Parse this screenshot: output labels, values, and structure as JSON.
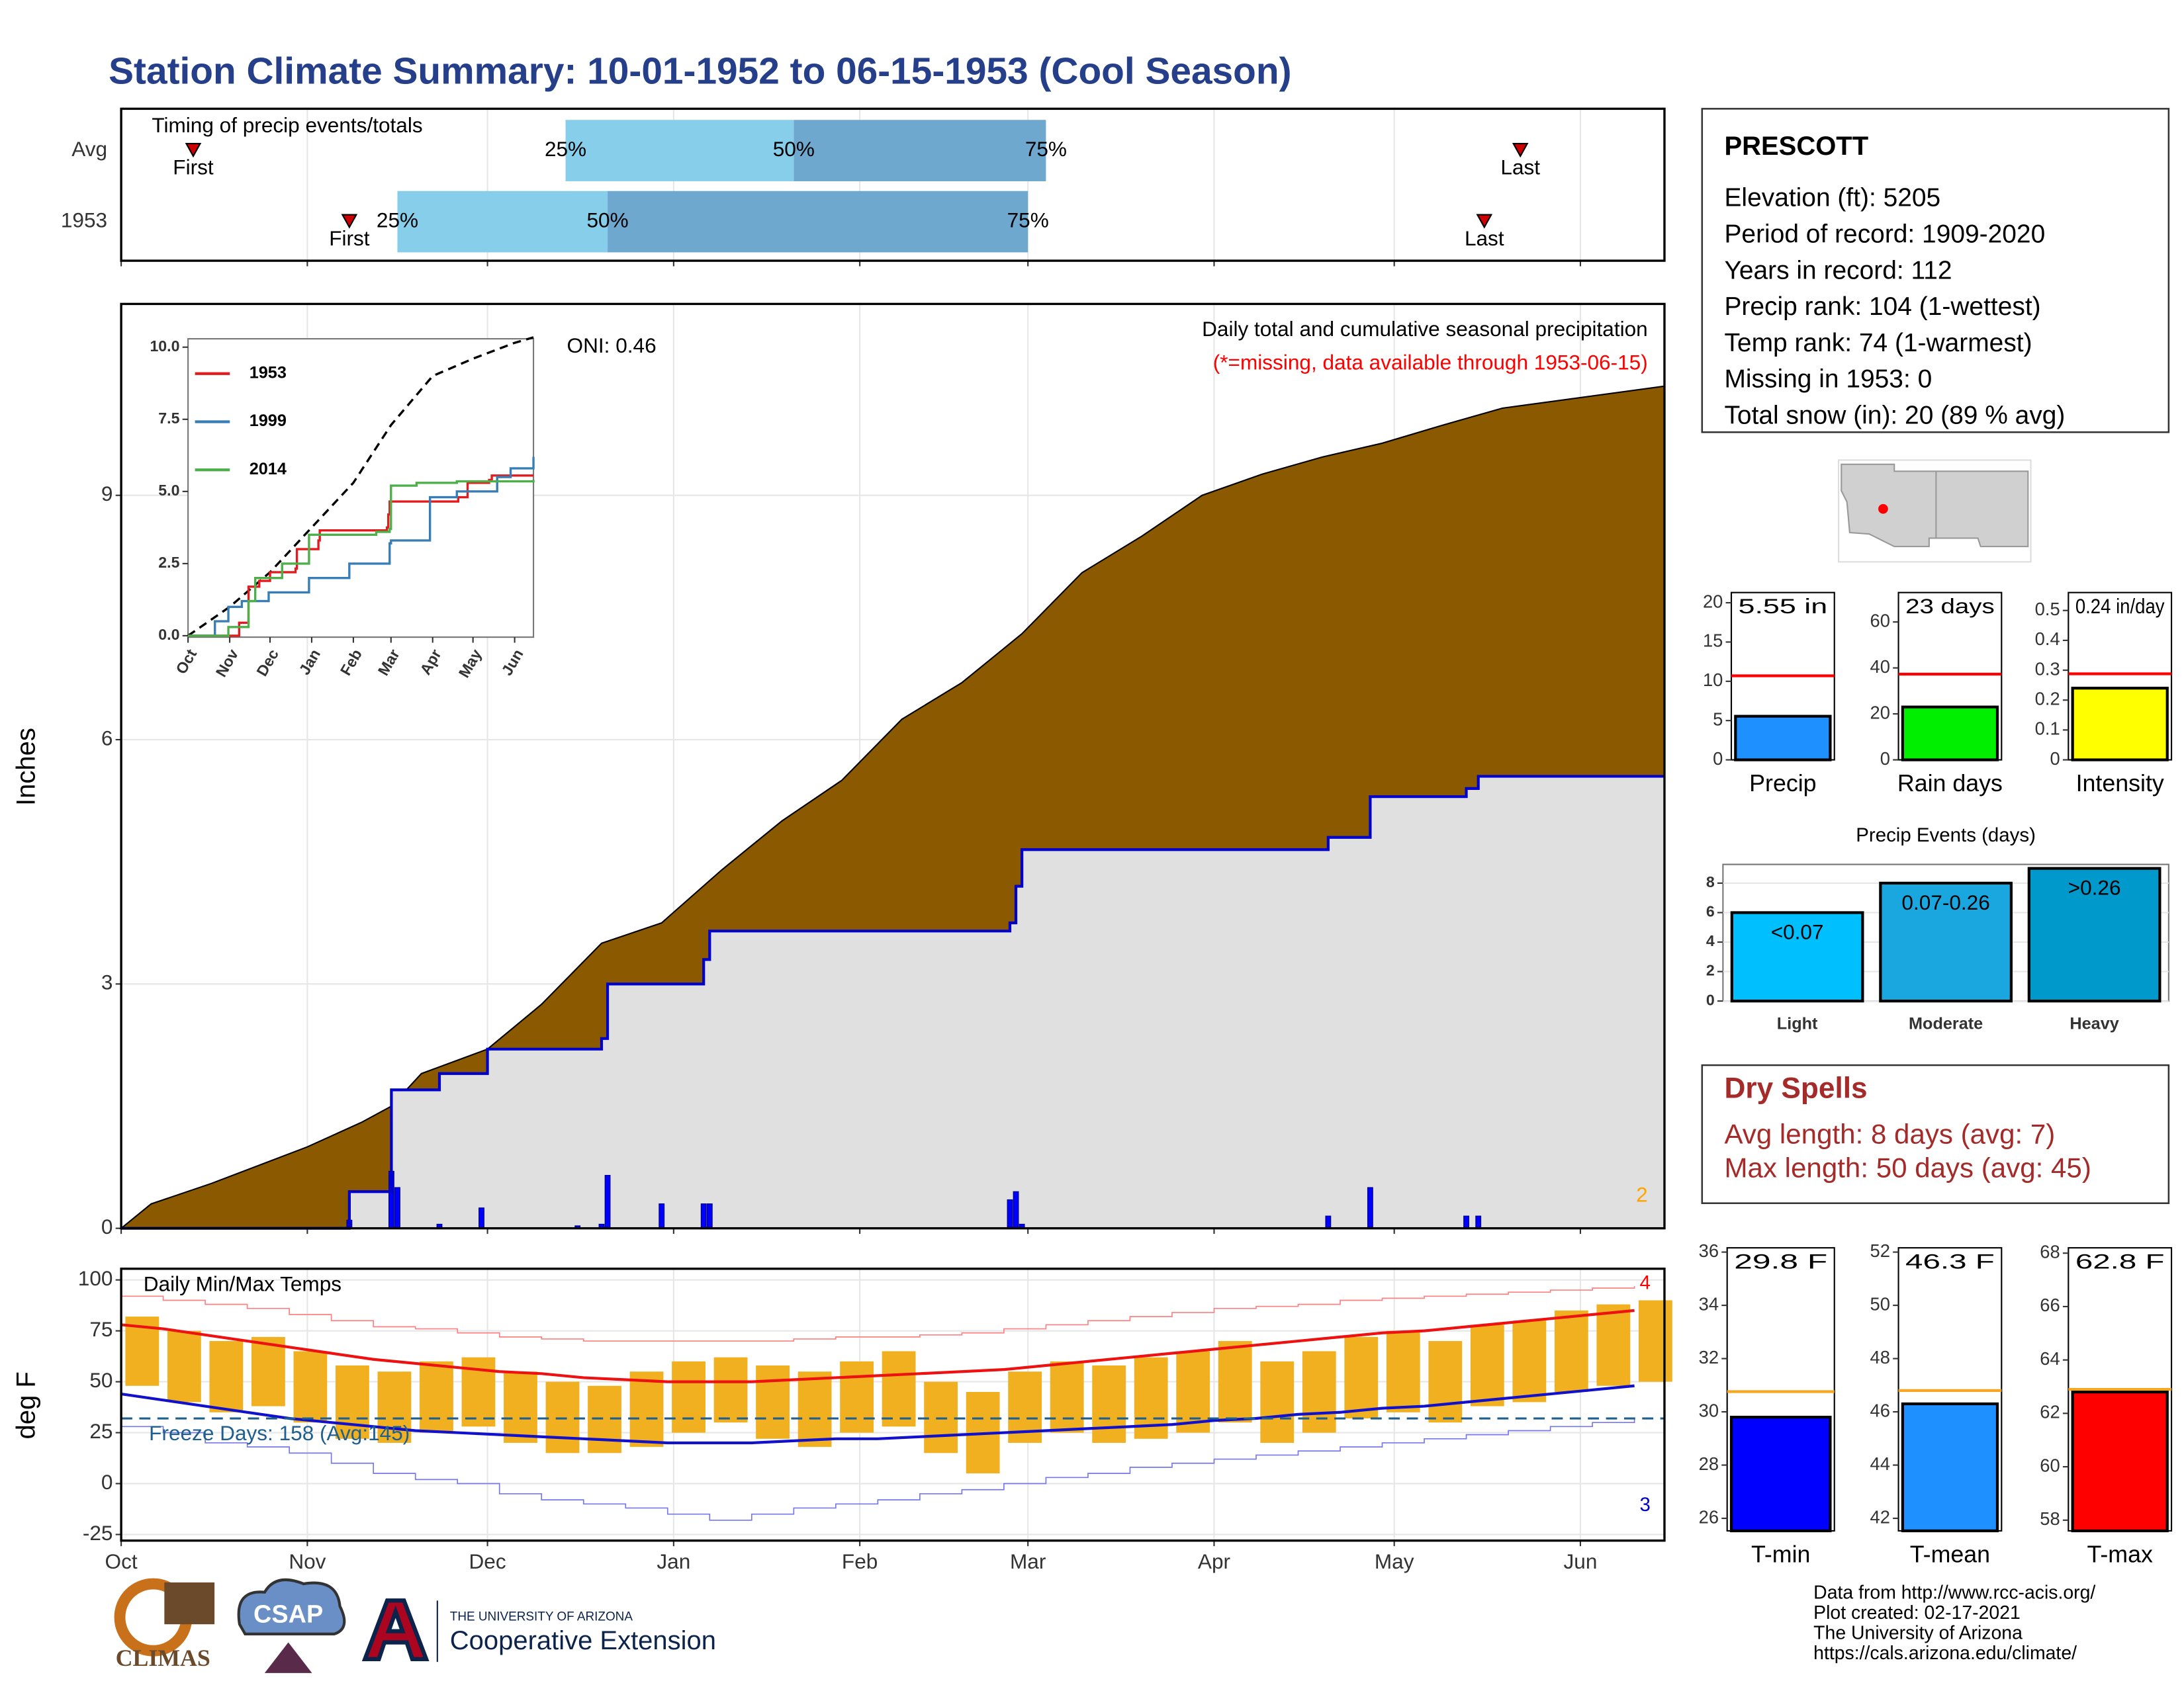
{
  "title": "Station Climate Summary: 10-01-1952 to 06-15-1953 (Cool Season)",
  "station": {
    "name": "PRESCOTT",
    "lines": [
      "Elevation (ft): 5205",
      "Period of record: 1909-2020",
      "Years in record: 112",
      "Precip rank: 104 (1-wettest)",
      "Temp rank: 74 (1-warmest)",
      "Missing in 1953: 0",
      "Total snow (in): 20 (89 % avg)"
    ]
  },
  "dry_spells": {
    "title": "Dry Spells",
    "lines": [
      "Avg length: 8 days (avg: 7)",
      "Max length: 50 days (avg: 45)"
    ]
  },
  "credits": {
    "lines": [
      "Data from http://www.rcc-acis.org/",
      "Plot created: 02-17-2021",
      "The University of Arizona",
      "https://cals.arizona.edu/climate/"
    ],
    "logos": [
      "CLIMAS",
      "CSAP",
      "THE UNIVERSITY OF ARIZONA",
      "Cooperative Extension"
    ]
  },
  "chart_data": [
    {
      "type": "timeline",
      "title": "Timing of precip events/totals",
      "xlim": [
        0,
        257
      ],
      "xticks": [
        0,
        31,
        61,
        92,
        123,
        151,
        182,
        212,
        243
      ],
      "rows": [
        {
          "name": "Avg",
          "labels": [
            "First",
            "25%",
            "50%",
            "75%",
            "Last"
          ],
          "values": [
            12,
            74,
            112,
            154,
            233
          ]
        },
        {
          "name": "1953",
          "labels": [
            "First",
            "25%",
            "50%",
            "75%",
            "Last"
          ],
          "values": [
            38,
            46,
            81,
            151,
            227
          ]
        }
      ],
      "colors": [
        "#cc0000",
        "#87ceeb",
        "#6fa8cf"
      ]
    },
    {
      "type": "area",
      "ylabel": "Inches",
      "xlim": [
        0,
        257
      ],
      "xticks": [
        0,
        31,
        61,
        92,
        123,
        151,
        182,
        212,
        243
      ],
      "ylim": [
        0,
        11.35
      ],
      "yticks": [
        0,
        3,
        6,
        9
      ],
      "grid": true,
      "annotations": [
        "ONI: 0.46",
        "Daily total and cumulative seasonal precipitation",
        "(*=missing, data available through 1953-06-15)",
        "2"
      ],
      "annotation_colors": [
        "#000000",
        "#000000",
        "#ff0000",
        "#ffa500"
      ],
      "series": [
        {
          "color": "#8b5a00",
          "x": [
            0,
            5,
            15,
            31,
            40,
            45,
            50,
            61,
            70,
            80,
            90,
            100,
            110,
            120,
            130,
            140,
            150,
            160,
            170,
            180,
            190,
            200,
            210,
            220,
            230,
            240,
            257
          ],
          "values": [
            0,
            0.3,
            0.55,
            1.0,
            1.3,
            1.5,
            1.9,
            2.2,
            2.75,
            3.5,
            3.75,
            4.4,
            5.0,
            5.5,
            6.25,
            6.7,
            7.3,
            8.05,
            8.5,
            9.0,
            9.26,
            9.47,
            9.64,
            9.86,
            10.07,
            10.17,
            10.34
          ]
        },
        {
          "color": "#0000cc",
          "fill": "#e0e0e0",
          "step": true,
          "x": [
            0,
            38,
            45,
            53,
            61,
            80,
            81,
            97,
            98,
            148,
            149,
            150,
            201,
            208,
            224,
            226,
            257
          ],
          "values": [
            0,
            0.45,
            1.7,
            1.9,
            2.2,
            2.33,
            3.0,
            3.3,
            3.65,
            3.75,
            4.2,
            4.65,
            4.8,
            5.3,
            5.4,
            5.55,
            5.55
          ]
        }
      ],
      "daily": {
        "color": "#0000ff",
        "x": [
          38,
          45,
          46,
          53,
          60,
          76,
          80,
          81,
          90,
          97,
          98,
          148,
          149,
          150,
          201,
          208,
          224,
          226
        ],
        "values": [
          0.1,
          0.7,
          0.5,
          0.05,
          0.25,
          0.03,
          0.05,
          0.65,
          0.3,
          0.3,
          0.3,
          0.35,
          0.45,
          0.05,
          0.15,
          0.5,
          0.15,
          0.15
        ]
      }
    },
    {
      "type": "line",
      "xlim": [
        0,
        257
      ],
      "xticks": [
        {
          "value": 0,
          "label": "Oct"
        },
        {
          "value": 31,
          "label": "Nov"
        },
        {
          "value": 61,
          "label": "Dec"
        },
        {
          "value": 92,
          "label": "Jan"
        },
        {
          "value": 123,
          "label": "Feb"
        },
        {
          "value": 151,
          "label": "Mar"
        },
        {
          "value": 182,
          "label": "Apr"
        },
        {
          "value": 212,
          "label": "May"
        },
        {
          "value": 243,
          "label": "Jun"
        }
      ],
      "ylim": [
        -0.05,
        10.29
      ],
      "yticks": [
        {
          "value": 0,
          "label": "0.0"
        },
        2.5,
        {
          "value": 5,
          "label": "5.0"
        },
        7.5,
        {
          "value": 10,
          "label": "10.0"
        }
      ],
      "series": [
        {
          "color": "#000000",
          "dash": true,
          "x": [
            0,
            31,
            61,
            92,
            123,
            151,
            182,
            212,
            243,
            257
          ],
          "values": [
            0,
            1.0,
            2.2,
            3.75,
            5.3,
            7.3,
            9.0,
            9.6,
            10.15,
            10.34
          ]
        },
        {
          "name": "1953",
          "color": "#e41a1c",
          "step": true,
          "x": [
            0,
            38,
            45,
            53,
            61,
            80,
            81,
            97,
            98,
            148,
            149,
            150,
            201,
            208,
            224,
            226,
            257
          ],
          "values": [
            0,
            0.45,
            1.7,
            1.9,
            2.2,
            2.33,
            3.0,
            3.3,
            3.65,
            3.75,
            4.2,
            4.65,
            4.8,
            5.3,
            5.4,
            5.55,
            5.55
          ]
        },
        {
          "name": "1999",
          "color": "#377eb8",
          "step": true,
          "x": [
            0,
            20,
            30,
            40,
            60,
            90,
            120,
            150,
            151,
            180,
            200,
            230,
            240,
            257
          ],
          "values": [
            0,
            0.5,
            1.0,
            1.2,
            1.5,
            2.0,
            2.5,
            3.2,
            3.3,
            4.8,
            5.0,
            5.5,
            5.8,
            6.2
          ]
        },
        {
          "name": "2014",
          "color": "#4daf4a",
          "step": true,
          "x": [
            0,
            30,
            45,
            50,
            70,
            90,
            140,
            150,
            151,
            170,
            200,
            257
          ],
          "values": [
            0,
            0.3,
            1.2,
            2.0,
            2.5,
            3.5,
            3.6,
            3.7,
            5.2,
            5.3,
            5.35,
            5.4
          ]
        }
      ]
    },
    {
      "type": "temperature",
      "title": "Daily Min/Max Temps",
      "ylabel": "deg F",
      "xlim": [
        0,
        257
      ],
      "xticks": [
        {
          "value": 0,
          "label": "Oct"
        },
        {
          "value": 31,
          "label": "Nov"
        },
        {
          "value": 61,
          "label": "Dec"
        },
        {
          "value": 92,
          "label": "Jan"
        },
        {
          "value": 123,
          "label": "Feb"
        },
        {
          "value": 151,
          "label": "Mar"
        },
        {
          "value": 182,
          "label": "Apr"
        },
        {
          "value": 212,
          "label": "May"
        },
        {
          "value": 243,
          "label": "Jun"
        }
      ],
      "ylim": [
        -28,
        105.5
      ],
      "yticks": [
        100,
        75,
        50,
        25,
        0,
        -25
      ],
      "grid": true,
      "x": [
        0,
        7,
        14,
        21,
        28,
        35,
        42,
        49,
        56,
        63,
        70,
        77,
        84,
        91,
        98,
        105,
        112,
        119,
        126,
        133,
        140,
        147,
        154,
        161,
        168,
        175,
        182,
        189,
        196,
        203,
        210,
        217,
        224,
        231,
        238,
        245,
        252
      ],
      "record_max": {
        "color": "#ff8080",
        "values": [
          92,
          90,
          88,
          86,
          83,
          80,
          77,
          76,
          74,
          72,
          71,
          70,
          70,
          70,
          70,
          70,
          71,
          72,
          72,
          73,
          74,
          76,
          78,
          80,
          82,
          84,
          86,
          87,
          88,
          90,
          91,
          92,
          93,
          94,
          95,
          96,
          97
        ]
      },
      "avg_max": {
        "color": "#ee1111",
        "values": [
          78,
          76,
          73,
          70,
          67,
          64,
          61,
          59,
          57,
          55,
          54,
          52,
          51,
          50,
          50,
          50,
          51,
          52,
          53,
          54,
          55,
          56,
          58,
          60,
          62,
          64,
          66,
          68,
          70,
          72,
          74,
          75,
          77,
          79,
          81,
          83,
          85
        ]
      },
      "avg_min": {
        "color": "#1111cc",
        "values": [
          44,
          41,
          38,
          35,
          32,
          30,
          28,
          26,
          25,
          24,
          23,
          22,
          21,
          20,
          20,
          20,
          21,
          22,
          22,
          23,
          24,
          25,
          26,
          27,
          28,
          29,
          31,
          32,
          34,
          35,
          37,
          38,
          40,
          42,
          44,
          46,
          48
        ]
      },
      "record_min": {
        "color": "#7777ee",
        "values": [
          28,
          25,
          20,
          18,
          15,
          10,
          5,
          2,
          0,
          -5,
          -8,
          -10,
          -12,
          -15,
          -18,
          -15,
          -12,
          -10,
          -8,
          -5,
          -3,
          0,
          3,
          5,
          8,
          10,
          12,
          14,
          16,
          18,
          20,
          22,
          24,
          26,
          28,
          30,
          32
        ]
      },
      "daily_max": {
        "values": [
          82,
          75,
          70,
          72,
          65,
          58,
          55,
          60,
          62,
          55,
          50,
          48,
          55,
          60,
          62,
          58,
          55,
          60,
          65,
          50,
          45,
          55,
          60,
          58,
          62,
          65,
          70,
          60,
          65,
          72,
          75,
          70,
          78,
          80,
          85,
          88,
          90
        ]
      },
      "daily_min": {
        "values": [
          48,
          40,
          35,
          38,
          30,
          22,
          20,
          25,
          28,
          20,
          15,
          15,
          18,
          25,
          30,
          22,
          18,
          25,
          28,
          15,
          5,
          20,
          25,
          20,
          22,
          25,
          30,
          20,
          25,
          32,
          35,
          30,
          38,
          40,
          45,
          48,
          50
        ]
      },
      "bar_color": "#f0b020",
      "freeze": {
        "value": 32,
        "color": "#1f5f8f",
        "label": "Freeze Days: 158 (Avg:145)"
      },
      "annotations": [
        "4",
        "3"
      ],
      "annotation_colors": [
        "#ff0000",
        "#0000cc"
      ]
    },
    {
      "type": "bar",
      "categories": [
        "Precip"
      ],
      "values": [
        5.55
      ],
      "value_labels": [
        "5.55 in"
      ],
      "avg": 10.7,
      "color": "#1e90ff",
      "avg_color": "#ff0000",
      "ylim": [
        0,
        21.3
      ],
      "yticks": [
        0,
        5,
        10,
        15,
        20
      ]
    },
    {
      "type": "bar",
      "categories": [
        "Rain days"
      ],
      "values": [
        23
      ],
      "value_labels": [
        "23 days"
      ],
      "avg": 37.3,
      "color": "#00ee00",
      "avg_color": "#ff0000",
      "ylim": [
        0,
        72.8
      ],
      "yticks": [
        0,
        20,
        40,
        60
      ]
    },
    {
      "type": "bar",
      "categories": [
        "Intensity"
      ],
      "values": [
        0.24
      ],
      "value_labels": [
        "0.24 in/day"
      ],
      "avg": 0.288,
      "color": "#ffff00",
      "avg_color": "#ff0000",
      "ylim": [
        0,
        0.56
      ],
      "yticks": [
        0,
        0.1,
        0.2,
        0.3,
        0.4,
        0.5
      ]
    },
    {
      "type": "bar",
      "title": "Precip Events (days)",
      "categories": [
        "Light",
        "Moderate",
        "Heavy"
      ],
      "values": [
        6,
        8,
        9
      ],
      "labels": [
        "<0.07",
        "0.07-0.26",
        ">0.26"
      ],
      "colors": [
        "#00bfff",
        "#1aa7e0",
        "#0099cc"
      ],
      "ylim": [
        0,
        9.27
      ],
      "yticks": [
        0,
        2,
        4,
        6,
        8
      ],
      "grid": true
    },
    {
      "type": "bar",
      "categories": [
        "T-min"
      ],
      "values": [
        29.8
      ],
      "value_labels": [
        "29.8 F"
      ],
      "avg": 30.76,
      "color": "#0000ff",
      "avg_color": "#f5a623",
      "ylim": [
        25.53,
        36.16
      ],
      "yticks": [
        26,
        28,
        30,
        32,
        34,
        36
      ]
    },
    {
      "type": "bar",
      "categories": [
        "T-mean"
      ],
      "values": [
        46.3
      ],
      "value_labels": [
        "46.3 F"
      ],
      "avg": 46.8,
      "color": "#1e90ff",
      "avg_color": "#f5a623",
      "ylim": [
        41.53,
        52.16
      ],
      "yticks": [
        42,
        44,
        46,
        48,
        50,
        52
      ]
    },
    {
      "type": "bar",
      "categories": [
        "T-max"
      ],
      "values": [
        62.8
      ],
      "value_labels": [
        "62.8 F"
      ],
      "avg": 62.9,
      "color": "#ff0000",
      "avg_color": "#f5a623",
      "ylim": [
        57.6,
        68.2
      ],
      "yticks": [
        58,
        60,
        62,
        64,
        66,
        68
      ]
    }
  ]
}
